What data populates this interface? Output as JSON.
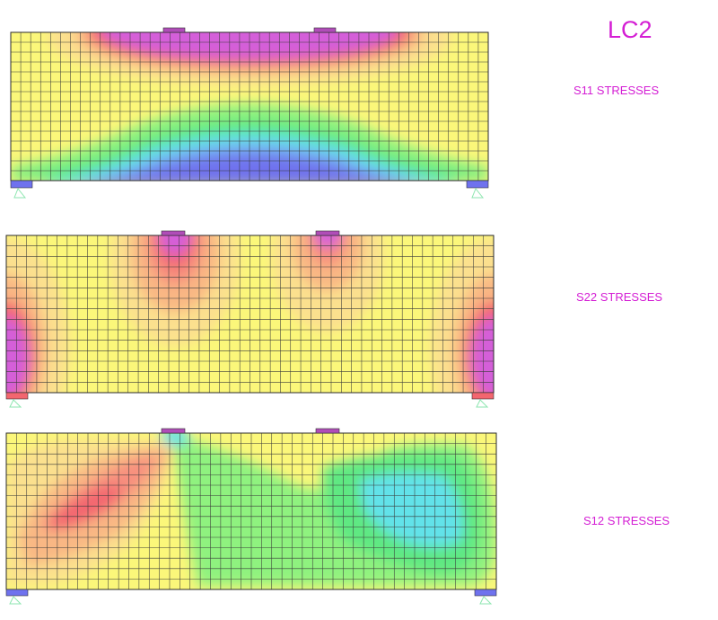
{
  "title": "LC2",
  "panels": [
    {
      "id": "s11",
      "label": "S11 STRESSES"
    },
    {
      "id": "s22",
      "label": "S22 STRESSES"
    },
    {
      "id": "s12",
      "label": "S12 STRESSES"
    }
  ],
  "colors": {
    "yellow": "#fbf77a",
    "light_orange": "#fbe08e",
    "orange": "#f9b784",
    "salmon": "#f78f7e",
    "red": "#f3666f",
    "magenta": "#d45fd9",
    "green": "#8ff27f",
    "bright_green": "#5ee882",
    "cyan": "#62e2e9",
    "light_blue": "#77a6f2",
    "blue": "#6f72ee",
    "mesh_line": "#3a3a3a",
    "label": "#d41ed4",
    "support": "#8ee6b0"
  }
}
